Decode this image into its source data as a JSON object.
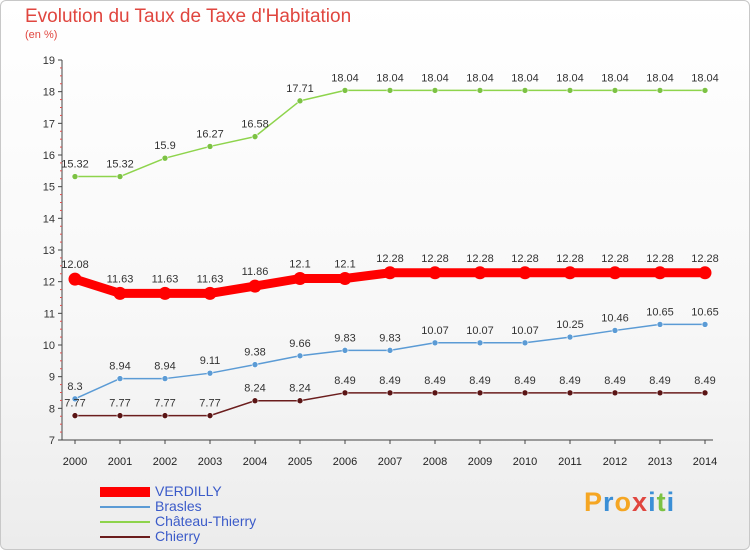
{
  "title": "Evolution du Taux de Taxe d'Habitation",
  "subtitle": "(en %)",
  "brand": {
    "letters": [
      "P",
      "r",
      "o",
      "x",
      "i",
      "t",
      "i"
    ],
    "colors": [
      "#f5a623",
      "#3b8fd6",
      "#f5a623",
      "#e0463f",
      "#3b8fd6",
      "#7cc243",
      "#3b8fd6"
    ]
  },
  "chart_data": {
    "type": "line",
    "x": [
      2000,
      2001,
      2002,
      2003,
      2004,
      2005,
      2006,
      2007,
      2008,
      2009,
      2010,
      2011,
      2012,
      2013,
      2014
    ],
    "ylim": [
      7,
      19
    ],
    "yticks": [
      7,
      8,
      9,
      10,
      11,
      12,
      13,
      14,
      15,
      16,
      17,
      18,
      19
    ],
    "grid": false,
    "legend_position": "bottom-left",
    "series": [
      {
        "name": "VERDILLY",
        "color": "#ff0000",
        "values": [
          12.08,
          11.63,
          11.63,
          11.63,
          11.86,
          12.1,
          12.1,
          12.28,
          12.28,
          12.28,
          12.28,
          12.28,
          12.28,
          12.28,
          12.28
        ],
        "labels": [
          "12.08",
          "11.63",
          "11.63",
          "11.63",
          "11.86",
          "12.1",
          "12.1",
          "12.28",
          "12.28",
          "12.28",
          "12.28",
          "12.28",
          "12.28",
          "12.28",
          "12.28"
        ]
      },
      {
        "name": "Brasles",
        "color": "#5b9bd5",
        "values": [
          8.3,
          8.94,
          8.94,
          9.11,
          9.38,
          9.66,
          9.83,
          9.83,
          10.07,
          10.07,
          10.07,
          10.25,
          10.46,
          10.65,
          10.65
        ],
        "labels": [
          "8.3",
          "8.94",
          "8.94",
          "9.11",
          "9.38",
          "9.66",
          "9.83",
          "9.83",
          "10.07",
          "10.07",
          "10.07",
          "10.25",
          "10.46",
          "10.65",
          "10.65"
        ]
      },
      {
        "name": "Château-Thierry",
        "color": "#8ed44c",
        "values": [
          15.32,
          15.32,
          15.9,
          16.27,
          16.58,
          17.71,
          18.04,
          18.04,
          18.04,
          18.04,
          18.04,
          18.04,
          18.04,
          18.04,
          18.04
        ],
        "labels": [
          "15.32",
          "15.32",
          "15.9",
          "16.27",
          "16.58",
          "17.71",
          "18.04",
          "18.04",
          "18.04",
          "18.04",
          "18.04",
          "18.04",
          "18.04",
          "18.04",
          "18.04"
        ]
      },
      {
        "name": "Chierry",
        "color": "#6b1d1d",
        "values": [
          7.77,
          7.77,
          7.77,
          7.77,
          8.24,
          8.24,
          8.49,
          8.49,
          8.49,
          8.49,
          8.49,
          8.49,
          8.49,
          8.49,
          8.49
        ],
        "labels": [
          "7.77",
          "7.77",
          "7.77",
          "7.77",
          "8.24",
          "8.24",
          "8.49",
          "8.49",
          "8.49",
          "8.49",
          "8.49",
          "8.49",
          "8.49",
          "8.49",
          "8.49"
        ]
      }
    ]
  }
}
